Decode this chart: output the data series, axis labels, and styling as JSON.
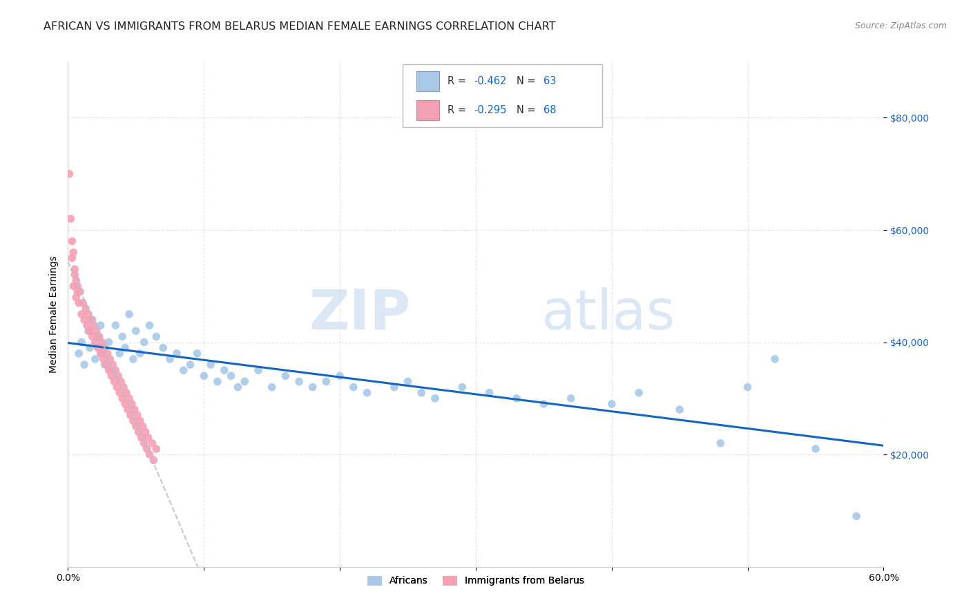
{
  "title": "AFRICAN VS IMMIGRANTS FROM BELARUS MEDIAN FEMALE EARNINGS CORRELATION CHART",
  "source": "Source: ZipAtlas.com",
  "ylabel": "Median Female Earnings",
  "xlim": [
    0.0,
    0.6
  ],
  "ylim": [
    0,
    90000
  ],
  "yticks": [
    20000,
    40000,
    60000,
    80000
  ],
  "ytick_labels": [
    "$20,000",
    "$40,000",
    "$60,000",
    "$80,000"
  ],
  "xticks": [
    0.0,
    0.1,
    0.2,
    0.3,
    0.4,
    0.5,
    0.6
  ],
  "xtick_labels": [
    "0.0%",
    "",
    "",
    "",
    "",
    "",
    "60.0%"
  ],
  "legend_label1": "Africans",
  "legend_label2": "Immigrants from Belarus",
  "R1": -0.462,
  "N1": 63,
  "R2": -0.295,
  "N2": 68,
  "color1": "#a8c8e8",
  "color2": "#f4a0b4",
  "line_color1": "#1565c0",
  "line_color2": "#bbbbcc",
  "background_color": "#ffffff",
  "watermark_zip": "ZIP",
  "watermark_atlas": "atlas",
  "title_fontsize": 11.5,
  "axis_label_fontsize": 10,
  "tick_fontsize": 10,
  "africans_x": [
    0.008,
    0.01,
    0.012,
    0.015,
    0.016,
    0.018,
    0.02,
    0.022,
    0.024,
    0.025,
    0.027,
    0.03,
    0.032,
    0.035,
    0.038,
    0.04,
    0.042,
    0.045,
    0.048,
    0.05,
    0.053,
    0.056,
    0.06,
    0.065,
    0.07,
    0.075,
    0.08,
    0.085,
    0.09,
    0.095,
    0.1,
    0.105,
    0.11,
    0.115,
    0.12,
    0.125,
    0.13,
    0.14,
    0.15,
    0.16,
    0.17,
    0.18,
    0.19,
    0.2,
    0.21,
    0.22,
    0.24,
    0.25,
    0.26,
    0.27,
    0.29,
    0.31,
    0.33,
    0.35,
    0.37,
    0.4,
    0.42,
    0.45,
    0.48,
    0.5,
    0.52,
    0.55,
    0.58
  ],
  "africans_y": [
    38000,
    40000,
    36000,
    42000,
    39000,
    44000,
    37000,
    41000,
    43000,
    38000,
    36000,
    40000,
    35000,
    43000,
    38000,
    41000,
    39000,
    45000,
    37000,
    42000,
    38000,
    40000,
    43000,
    41000,
    39000,
    37000,
    38000,
    35000,
    36000,
    38000,
    34000,
    36000,
    33000,
    35000,
    34000,
    32000,
    33000,
    35000,
    32000,
    34000,
    33000,
    32000,
    33000,
    34000,
    32000,
    31000,
    32000,
    33000,
    31000,
    30000,
    32000,
    31000,
    30000,
    29000,
    30000,
    29000,
    31000,
    28000,
    22000,
    32000,
    37000,
    21000,
    9000
  ],
  "belarus_x": [
    0.003,
    0.004,
    0.005,
    0.006,
    0.007,
    0.008,
    0.009,
    0.01,
    0.011,
    0.012,
    0.013,
    0.014,
    0.015,
    0.016,
    0.017,
    0.018,
    0.019,
    0.02,
    0.021,
    0.022,
    0.023,
    0.024,
    0.025,
    0.026,
    0.027,
    0.028,
    0.029,
    0.03,
    0.031,
    0.032,
    0.033,
    0.034,
    0.035,
    0.036,
    0.037,
    0.038,
    0.039,
    0.04,
    0.041,
    0.042,
    0.043,
    0.044,
    0.045,
    0.046,
    0.047,
    0.048,
    0.049,
    0.05,
    0.051,
    0.052,
    0.053,
    0.054,
    0.055,
    0.056,
    0.057,
    0.058,
    0.059,
    0.06,
    0.062,
    0.063,
    0.065,
    0.001,
    0.002,
    0.003,
    0.004,
    0.005,
    0.006,
    0.007
  ],
  "belarus_y": [
    55000,
    50000,
    52000,
    48000,
    50000,
    47000,
    49000,
    45000,
    47000,
    44000,
    46000,
    43000,
    45000,
    42000,
    44000,
    41000,
    43000,
    40000,
    42000,
    39000,
    41000,
    38000,
    40000,
    37000,
    39000,
    36000,
    38000,
    35000,
    37000,
    34000,
    36000,
    33000,
    35000,
    32000,
    34000,
    31000,
    33000,
    30000,
    32000,
    29000,
    31000,
    28000,
    30000,
    27000,
    29000,
    26000,
    28000,
    25000,
    27000,
    24000,
    26000,
    23000,
    25000,
    22000,
    24000,
    21000,
    23000,
    20000,
    22000,
    19000,
    21000,
    70000,
    62000,
    58000,
    56000,
    53000,
    51000,
    49000
  ]
}
